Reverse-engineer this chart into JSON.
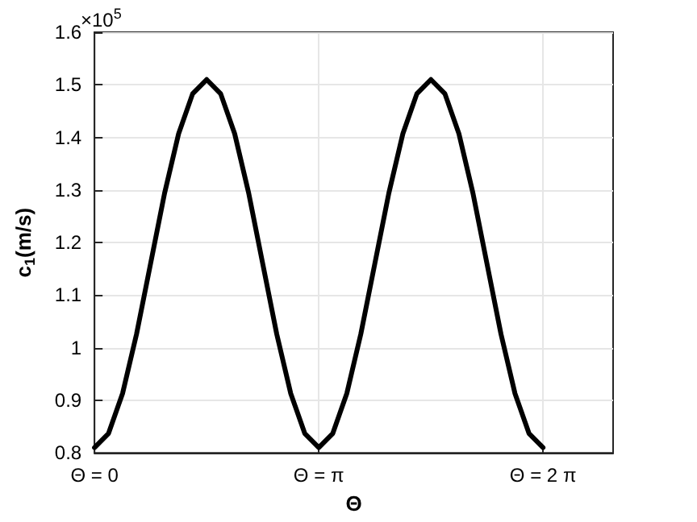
{
  "chart_data": {
    "type": "line",
    "xlabel": "Θ",
    "ylabel": "c$_{1}$(m/s)",
    "annotations": [
      "×10$^{5}$"
    ],
    "categories": [
      "Θ = 0",
      null,
      null,
      null,
      null,
      null,
      null,
      null,
      null,
      null,
      null,
      null,
      null,
      null,
      null,
      null,
      "Θ = π",
      null,
      null,
      null,
      null,
      null,
      null,
      null,
      null,
      null,
      null,
      null,
      null,
      null,
      null,
      null,
      "Θ = 2 π",
      null,
      null,
      null,
      null,
      null
    ],
    "series": [
      {
        "color": "#000000",
        "values": [
          0.81,
          0.837,
          0.913,
          1.026,
          1.16,
          1.294,
          1.407,
          1.483,
          1.51,
          1.483,
          1.407,
          1.294,
          1.16,
          1.026,
          0.913,
          0.837,
          0.81,
          0.837,
          0.913,
          1.026,
          1.16,
          1.294,
          1.407,
          1.483,
          1.51,
          1.483,
          1.407,
          1.294,
          1.16,
          1.026,
          0.913,
          0.837,
          0.81,
          null,
          null,
          null,
          null,
          null
        ]
      }
    ],
    "ylim": [
      0.8,
      1.6
    ],
    "yticks": [
      0.8,
      0.9,
      1,
      1.1,
      1.2,
      1.3,
      1.4,
      1.5,
      1.6
    ],
    "grid": true,
    "marker": "none",
    "line_style": "solid"
  }
}
